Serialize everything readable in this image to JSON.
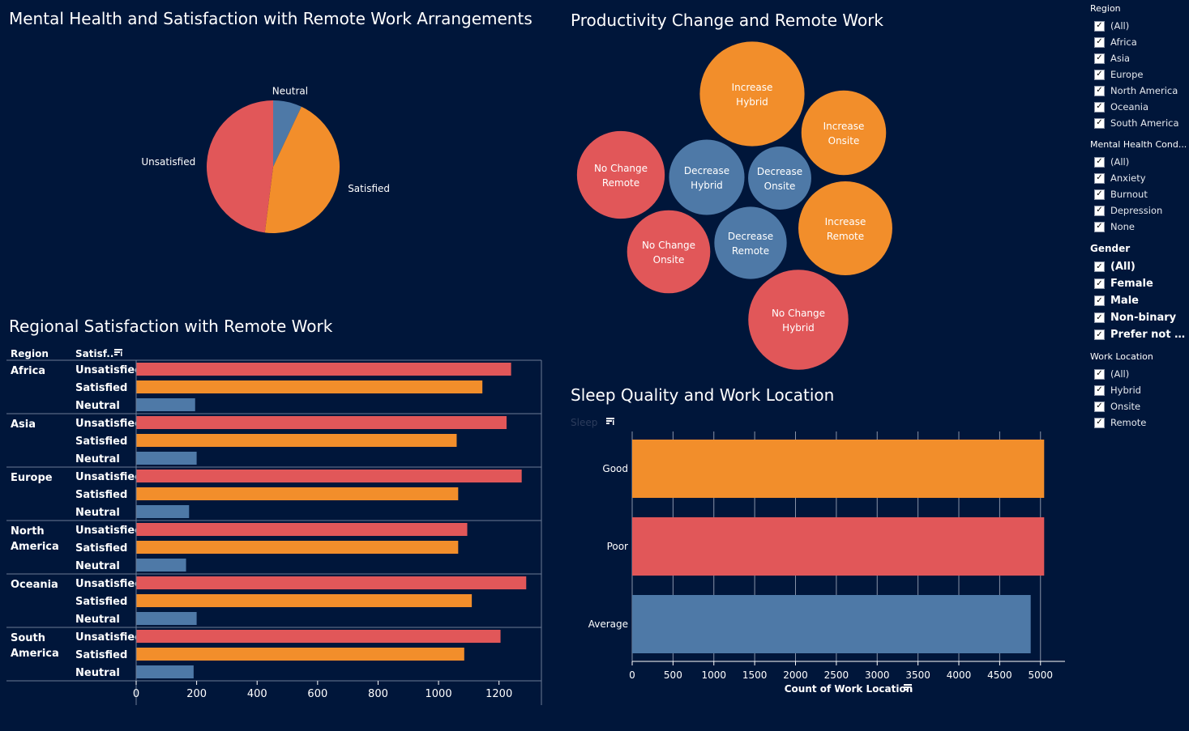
{
  "titles": {
    "pie": "Mental Health and Satisfaction with Remote Work Arrangements",
    "bubbles": "Productivity Change and Remote Work",
    "regional": "Regional Satisfaction with Remote Work",
    "sleep": "Sleep Quality and Work Location"
  },
  "regional_headers": {
    "region": "Region",
    "satisfaction": "Satisf.."
  },
  "sleep_header": "Sleep",
  "colors": {
    "unsatisfied": "#e15759",
    "satisfied": "#f28e2b",
    "neutral": "#4e79a7",
    "background": "#00163a"
  },
  "chart_data": [
    {
      "type": "pie",
      "title": "Mental Health and Satisfaction with Remote Work Arrangements",
      "slices": [
        {
          "label": "Neutral",
          "value": 7
        },
        {
          "label": "Satisfied",
          "value": 45
        },
        {
          "label": "Unsatisfied",
          "value": 48
        }
      ]
    },
    {
      "type": "scatter",
      "title": "Productivity Change and Remote Work",
      "bubbles": [
        {
          "line1": "Increase",
          "line2": "Hybrid",
          "group": "Increase",
          "size": 68
        },
        {
          "line1": "Increase",
          "line2": "Onsite",
          "group": "Increase",
          "size": 55
        },
        {
          "line1": "Increase",
          "line2": "Remote",
          "group": "Increase",
          "size": 61
        },
        {
          "line1": "No Change",
          "line2": "Remote",
          "group": "No Change",
          "size": 57
        },
        {
          "line1": "No Change",
          "line2": "Onsite",
          "group": "No Change",
          "size": 54
        },
        {
          "line1": "No Change",
          "line2": "Hybrid",
          "group": "No Change",
          "size": 65
        },
        {
          "line1": "Decrease",
          "line2": "Hybrid",
          "group": "Decrease",
          "size": 49
        },
        {
          "line1": "Decrease",
          "line2": "Onsite",
          "group": "Decrease",
          "size": 41
        },
        {
          "line1": "Decrease",
          "line2": "Remote",
          "group": "Decrease",
          "size": 47
        }
      ]
    },
    {
      "type": "bar",
      "title": "Regional Satisfaction with Remote Work",
      "xlabel": "",
      "xlim": [
        0,
        1300
      ],
      "xticks": [
        "0",
        "200",
        "400",
        "600",
        "800",
        "1000",
        "1200"
      ],
      "regions": [
        {
          "name_lines": [
            "Africa"
          ],
          "bars": [
            {
              "label": "Unsatisfied",
              "value": 1240
            },
            {
              "label": "Satisfied",
              "value": 1145
            },
            {
              "label": "Neutral",
              "value": 195
            }
          ]
        },
        {
          "name_lines": [
            "Asia"
          ],
          "bars": [
            {
              "label": "Unsatisfied",
              "value": 1225
            },
            {
              "label": "Satisfied",
              "value": 1060
            },
            {
              "label": "Neutral",
              "value": 200
            }
          ]
        },
        {
          "name_lines": [
            "Europe"
          ],
          "bars": [
            {
              "label": "Unsatisfied",
              "value": 1275
            },
            {
              "label": "Satisfied",
              "value": 1065
            },
            {
              "label": "Neutral",
              "value": 175
            }
          ]
        },
        {
          "name_lines": [
            "North",
            "America"
          ],
          "bars": [
            {
              "label": "Unsatisfied",
              "value": 1095
            },
            {
              "label": "Satisfied",
              "value": 1065
            },
            {
              "label": "Neutral",
              "value": 165
            }
          ]
        },
        {
          "name_lines": [
            "Oceania"
          ],
          "bars": [
            {
              "label": "Unsatisfied",
              "value": 1290
            },
            {
              "label": "Satisfied",
              "value": 1110
            },
            {
              "label": "Neutral",
              "value": 200
            }
          ]
        },
        {
          "name_lines": [
            "South",
            "America"
          ],
          "bars": [
            {
              "label": "Unsatisfied",
              "value": 1205
            },
            {
              "label": "Satisfied",
              "value": 1085
            },
            {
              "label": "Neutral",
              "value": 190
            }
          ]
        }
      ]
    },
    {
      "type": "bar",
      "title": "Sleep Quality and Work Location",
      "xlabel": "Count of Work Location",
      "xlim": [
        0,
        5300
      ],
      "xticks": [
        "0",
        "500",
        "1000",
        "1500",
        "2000",
        "2500",
        "3000",
        "3500",
        "4000",
        "4500",
        "5000"
      ],
      "categories": [
        "Good",
        "Poor",
        "Average"
      ],
      "values": [
        5045,
        5045,
        4880
      ],
      "bar_colors": [
        "#f28e2b",
        "#e15759",
        "#4e79a7"
      ]
    }
  ],
  "filters": [
    {
      "title": "Region",
      "style": "normal",
      "items": [
        "(All)",
        "Africa",
        "Asia",
        "Europe",
        "North America",
        "Oceania",
        "South America"
      ]
    },
    {
      "title": "Mental Health Cond...",
      "style": "normal",
      "items": [
        "(All)",
        "Anxiety",
        "Burnout",
        "Depression",
        "None"
      ]
    },
    {
      "title": "Gender",
      "style": "bold",
      "items": [
        "(All)",
        "Female",
        "Male",
        "Non-binary",
        "Prefer not to ..."
      ]
    },
    {
      "title": "Work Location",
      "style": "normal",
      "items": [
        "(All)",
        "Hybrid",
        "Onsite",
        "Remote"
      ]
    }
  ]
}
